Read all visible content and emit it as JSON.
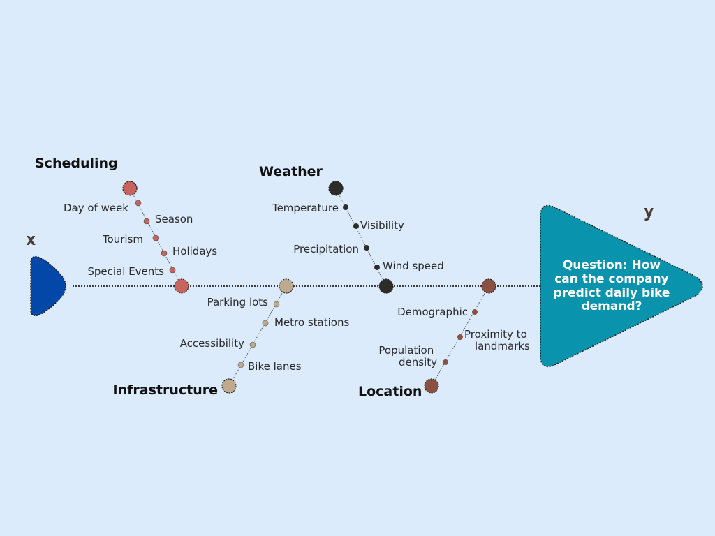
{
  "diagram": {
    "x_label": "x",
    "y_label": "y",
    "question_lines": [
      "Question:  How",
      "can the company",
      "predict daily bike",
      "demand?"
    ],
    "colors": {
      "background": "#dcebfc",
      "tail": "#0347a8",
      "head": "#0a93ad",
      "scheduling": "#c8645f",
      "weather": "#2e2c28",
      "infrastructure": "#bfa98f",
      "location": "#8c5040"
    },
    "categories": [
      {
        "name": "Scheduling",
        "factors": [
          "Day of week",
          "Season",
          "Tourism",
          "Holidays",
          "Special Events"
        ]
      },
      {
        "name": "Weather",
        "factors": [
          "Temperature",
          "Visibility",
          "Precipitation",
          "Wind speed"
        ]
      },
      {
        "name": "Infrastructure",
        "factors": [
          "Parking lots",
          "Metro stations",
          "Accessibility",
          "Bike lanes"
        ]
      },
      {
        "name": "Location",
        "factors": [
          "Demographic",
          "Proximity to landmarks",
          "Population density"
        ]
      }
    ]
  }
}
